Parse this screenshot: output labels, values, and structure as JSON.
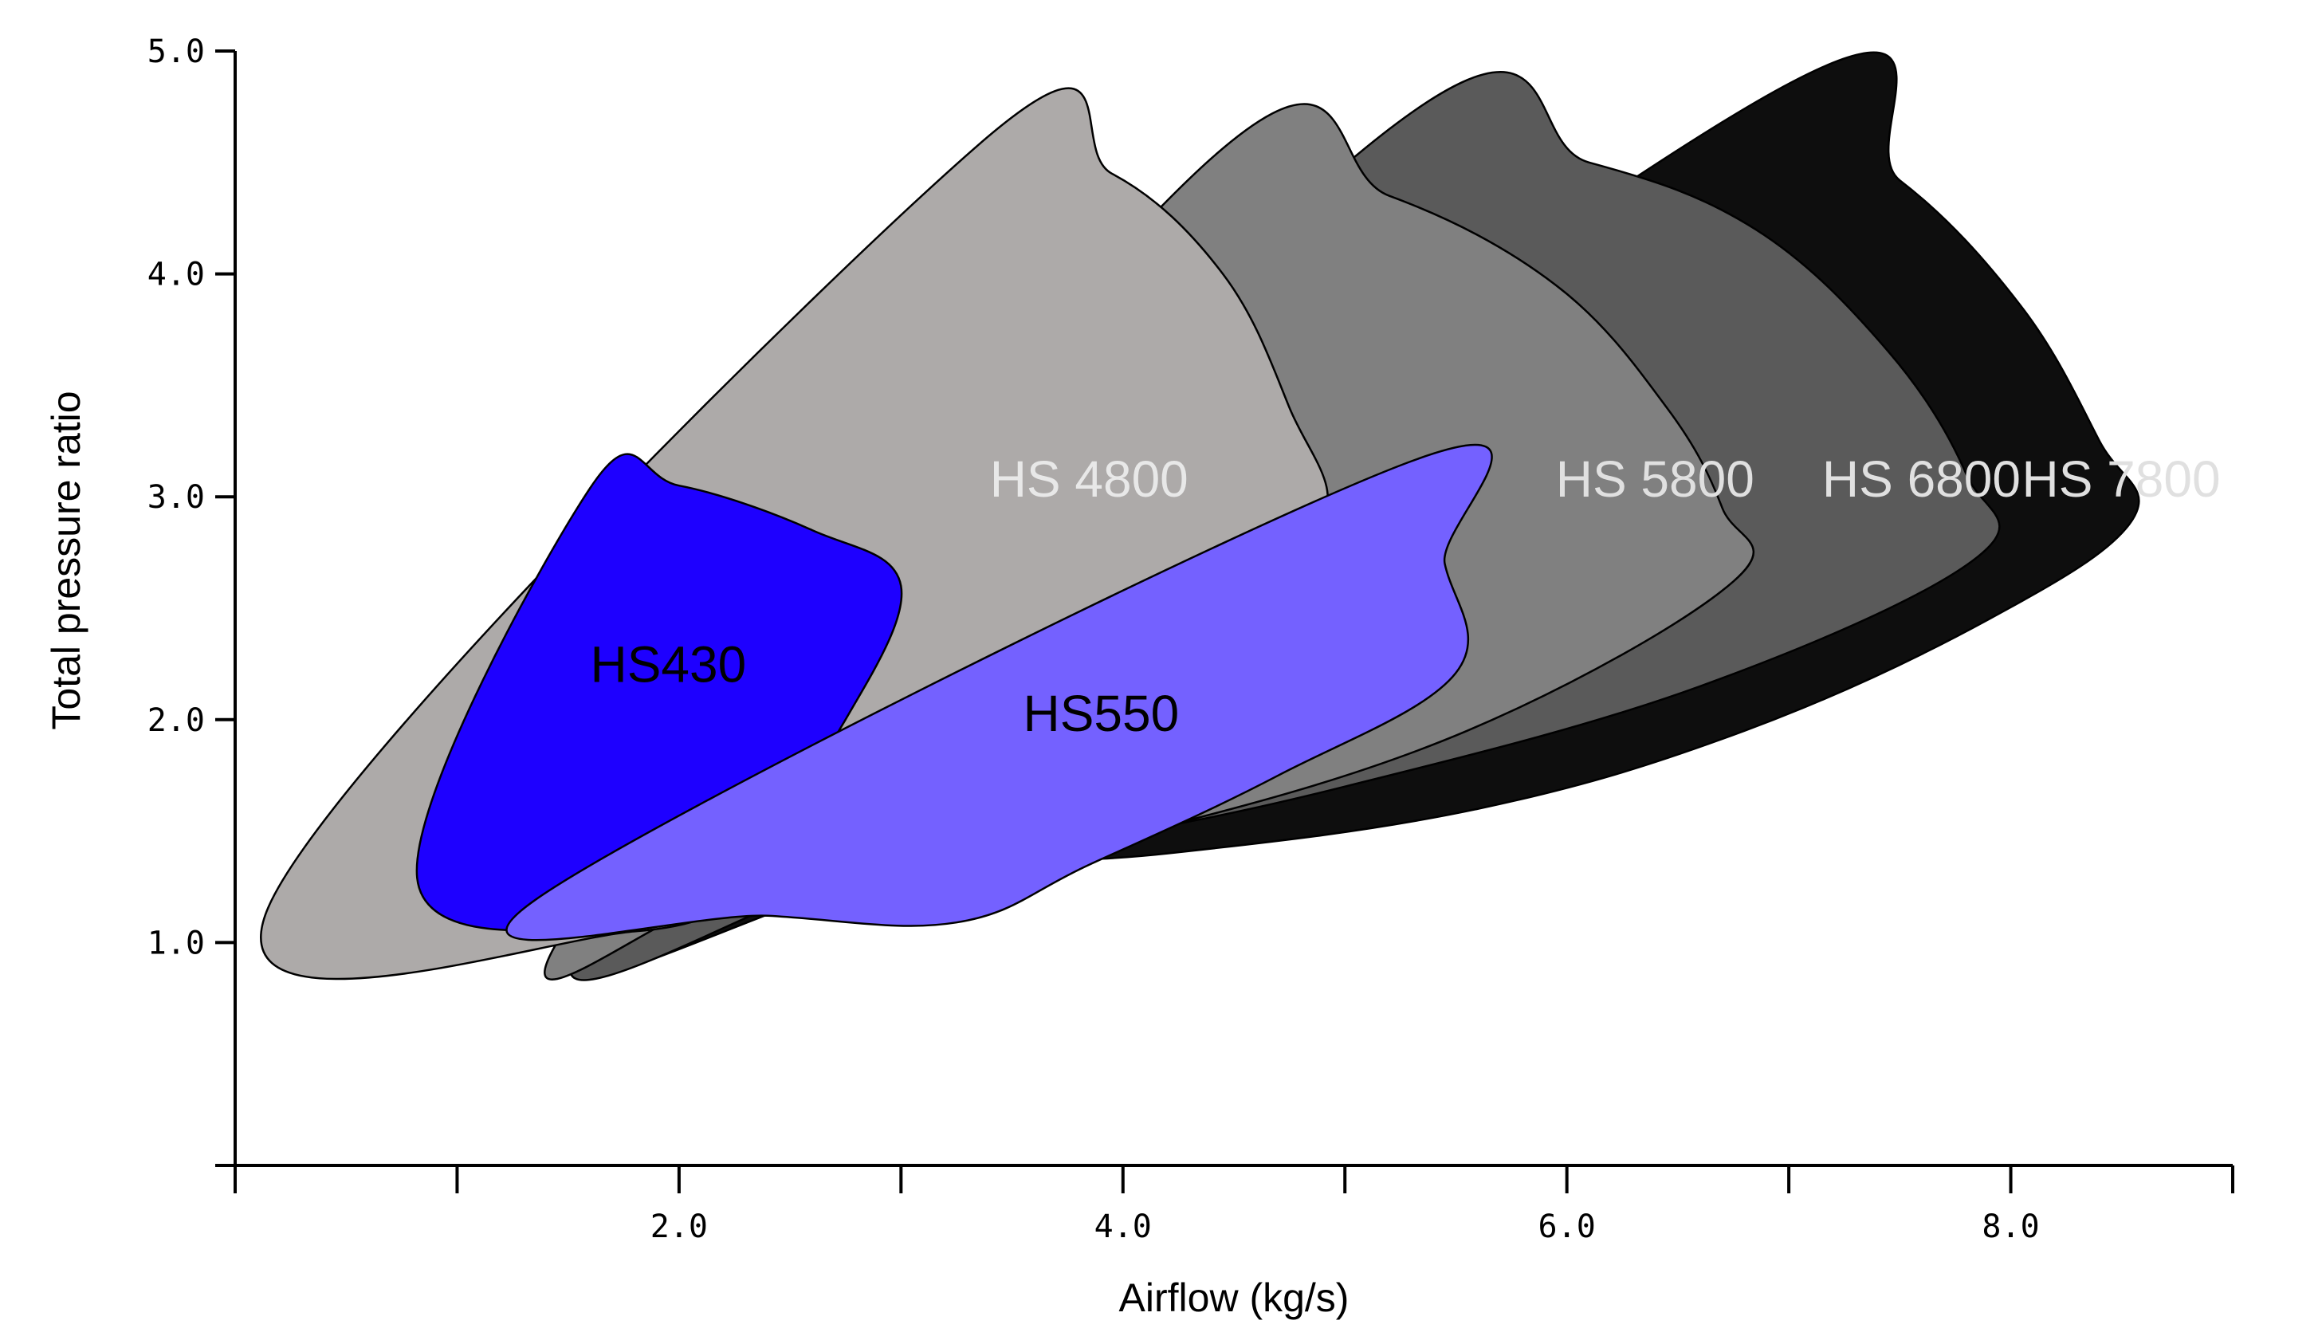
{
  "chart_data": {
    "type": "area",
    "title": "",
    "xlabel": "Airflow (kg/s)",
    "ylabel": "Total pressure ratio",
    "xlim": [
      0,
      9.0
    ],
    "ylim": [
      0,
      5.0
    ],
    "x_ticks": [
      0,
      1,
      2,
      3,
      4,
      5,
      6,
      7,
      8,
      9
    ],
    "x_tick_labels": [
      "2.0",
      "4.0",
      "6.0",
      "8.0"
    ],
    "x_tick_label_values": [
      2.0,
      4.0,
      6.0,
      8.0
    ],
    "y_ticks": [
      1.0,
      2.0,
      3.0,
      4.0,
      5.0
    ],
    "y_tick_labels": [
      "1.0",
      "2.0",
      "3.0",
      "4.0",
      "5.0"
    ],
    "grid": false,
    "legend": "none (labels drawn inside regions)",
    "series": [
      {
        "name": "HS 7800",
        "color": "#0e0e0e",
        "label_color": "#e0e0e0",
        "label_pos": [
          8.05,
          3.0
        ],
        "points": [
          [
            1.7,
            1.07
          ],
          [
            6.85,
            4.77
          ],
          [
            7.5,
            4.42
          ],
          [
            8.05,
            3.85
          ],
          [
            8.4,
            3.25
          ],
          [
            8.55,
            2.9
          ],
          [
            7.9,
            2.45
          ],
          [
            6.8,
            1.95
          ],
          [
            5.6,
            1.6
          ],
          [
            4.2,
            1.4
          ],
          [
            3.0,
            1.32
          ],
          [
            1.7,
            1.07
          ]
        ]
      },
      {
        "name": "HS 6800",
        "color": "#5a5a5a",
        "label_color": "#e0e0e0",
        "label_pos": [
          7.15,
          3.0
        ],
        "points": [
          [
            1.6,
            1.06
          ],
          [
            5.2,
            4.65
          ],
          [
            6.1,
            4.5
          ],
          [
            6.85,
            4.2
          ],
          [
            7.45,
            3.65
          ],
          [
            7.8,
            3.1
          ],
          [
            7.85,
            2.73
          ],
          [
            6.6,
            2.15
          ],
          [
            5.0,
            1.7
          ],
          [
            3.8,
            1.45
          ],
          [
            2.8,
            1.3
          ],
          [
            1.6,
            1.06
          ]
        ]
      },
      {
        "name": "HS 5800",
        "color": "#808080",
        "label_color": "#e0e0e0",
        "label_pos": [
          5.95,
          3.0
        ],
        "points": [
          [
            1.5,
            1.08
          ],
          [
            4.4,
            4.52
          ],
          [
            5.2,
            4.35
          ],
          [
            5.95,
            3.95
          ],
          [
            6.45,
            3.4
          ],
          [
            6.7,
            2.95
          ],
          [
            6.75,
            2.62
          ],
          [
            5.55,
            1.95
          ],
          [
            4.1,
            1.5
          ],
          [
            3.0,
            1.32
          ],
          [
            2.2,
            1.2
          ],
          [
            1.5,
            1.08
          ]
        ]
      },
      {
        "name": "HS 4800",
        "color": "#adaaa9",
        "label_color": "#e8e8e8",
        "label_pos": [
          3.4,
          3.0
        ],
        "points": [
          [
            0.15,
            1.16
          ],
          [
            3.35,
            4.58
          ],
          [
            3.95,
            4.45
          ],
          [
            4.45,
            4.0
          ],
          [
            4.75,
            3.4
          ],
          [
            4.9,
            2.9
          ],
          [
            4.3,
            2.55
          ],
          [
            3.3,
            1.9
          ],
          [
            2.5,
            1.35
          ],
          [
            1.8,
            1.05
          ],
          [
            0.15,
            1.16
          ]
        ]
      },
      {
        "name": "HS430",
        "color": "#1e00ff",
        "label_color": "#000000",
        "label_pos": [
          1.6,
          2.17
        ],
        "points": [
          [
            0.82,
            1.29
          ],
          [
            1.6,
            3.04
          ],
          [
            2.0,
            3.05
          ],
          [
            2.6,
            2.85
          ],
          [
            3.0,
            2.6
          ],
          [
            2.75,
            2.0
          ],
          [
            2.4,
            1.55
          ],
          [
            2.1,
            1.25
          ],
          [
            1.8,
            1.08
          ],
          [
            0.82,
            1.29
          ]
        ]
      },
      {
        "name": "HS550",
        "color": "#7461ff",
        "label_color": "#000000",
        "label_pos": [
          3.55,
          1.95
        ],
        "points": [
          [
            1.35,
            1.19
          ],
          [
            5.3,
            3.16
          ],
          [
            5.45,
            2.7
          ],
          [
            5.5,
            2.21
          ],
          [
            4.7,
            1.75
          ],
          [
            3.85,
            1.35
          ],
          [
            3.25,
            1.09
          ],
          [
            2.4,
            1.12
          ],
          [
            1.35,
            1.19
          ]
        ]
      }
    ]
  }
}
